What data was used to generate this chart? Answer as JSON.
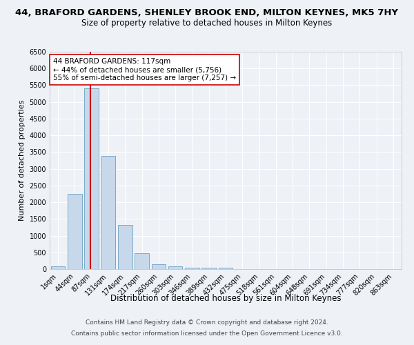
{
  "title": "44, BRAFORD GARDENS, SHENLEY BROOK END, MILTON KEYNES, MK5 7HY",
  "subtitle": "Size of property relative to detached houses in Milton Keynes",
  "xlabel": "Distribution of detached houses by size in Milton Keynes",
  "ylabel": "Number of detached properties",
  "bar_color": "#c8d8eb",
  "bar_edge_color": "#7aaac8",
  "bin_labels": [
    "1sqm",
    "44sqm",
    "87sqm",
    "131sqm",
    "174sqm",
    "217sqm",
    "260sqm",
    "303sqm",
    "346sqm",
    "389sqm",
    "432sqm",
    "475sqm",
    "518sqm",
    "561sqm",
    "604sqm",
    "648sqm",
    "691sqm",
    "734sqm",
    "777sqm",
    "820sqm",
    "863sqm"
  ],
  "bin_values": [
    75,
    2250,
    5400,
    3375,
    1325,
    475,
    150,
    75,
    50,
    50,
    50,
    0,
    0,
    0,
    0,
    0,
    0,
    0,
    0,
    0,
    0
  ],
  "red_line_x": 1.93,
  "red_line_color": "#cc0000",
  "annotation_line1": "44 BRAFORD GARDENS: 117sqm",
  "annotation_line2": "← 44% of detached houses are smaller (5,756)",
  "annotation_line3": "55% of semi-detached houses are larger (7,257) →",
  "annotation_box_color": "#ffffff",
  "annotation_box_edge": "#cc0000",
  "ylim": [
    0,
    6500
  ],
  "yticks": [
    0,
    500,
    1000,
    1500,
    2000,
    2500,
    3000,
    3500,
    4000,
    4500,
    5000,
    5500,
    6000,
    6500
  ],
  "footer_line1": "Contains HM Land Registry data © Crown copyright and database right 2024.",
  "footer_line2": "Contains public sector information licensed under the Open Government Licence v3.0.",
  "background_color": "#eef2f7",
  "grid_color": "#ffffff",
  "title_fontsize": 9.5,
  "subtitle_fontsize": 8.5,
  "xlabel_fontsize": 8.5,
  "ylabel_fontsize": 8,
  "tick_fontsize": 7,
  "annotation_fontsize": 7.5,
  "footer_fontsize": 6.5
}
